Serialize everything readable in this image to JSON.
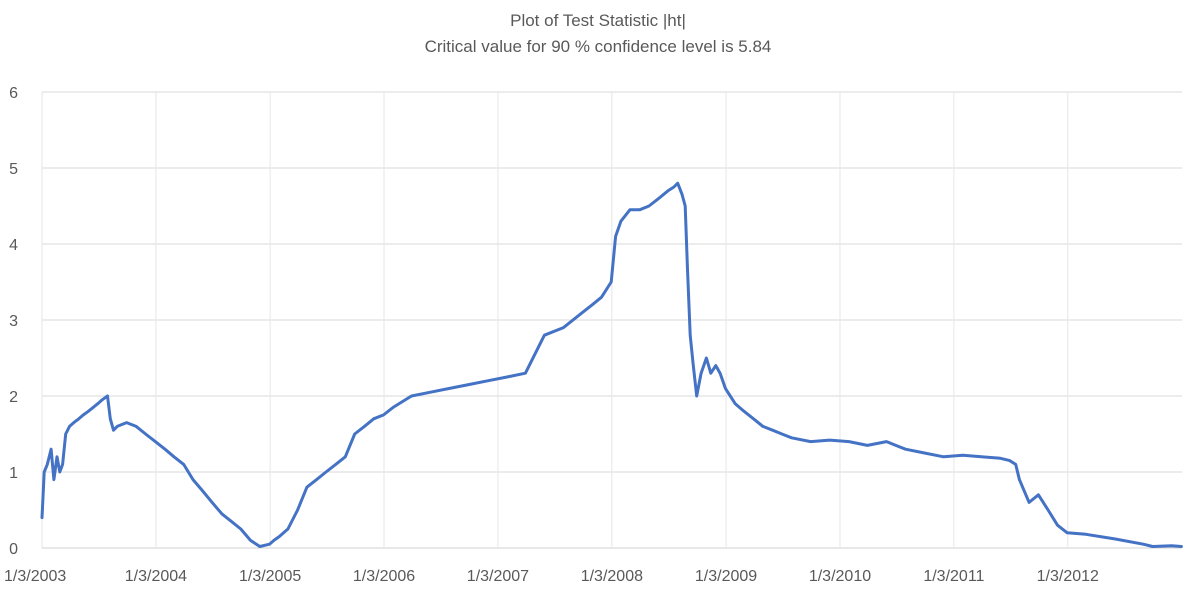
{
  "chart_data": {
    "type": "line",
    "title": "Plot of Test Statistic |ht|",
    "subtitle": "Critical value for 90 % confidence level is 5.84",
    "xlabel": "",
    "ylabel": "",
    "ylim": [
      0,
      6
    ],
    "yticks": [
      "0",
      "1",
      "2",
      "3",
      "4",
      "5",
      "6"
    ],
    "xticks": [
      "1/3/2003",
      "1/3/2004",
      "1/3/2005",
      "1/3/2006",
      "1/3/2007",
      "1/3/2008",
      "1/3/2009",
      "1/3/2010",
      "1/3/2011",
      "1/3/2012"
    ],
    "grid": true,
    "legend": "none",
    "line_color": "#4472C4",
    "series": [
      {
        "x": [
          "2003-01-03",
          "2003-01-10",
          "2003-01-20",
          "2003-02-01",
          "2003-02-10",
          "2003-02-20",
          "2003-03-01",
          "2003-03-10",
          "2003-03-20",
          "2003-04-01",
          "2003-04-15",
          "2003-05-01",
          "2003-05-15",
          "2003-06-01",
          "2003-07-01",
          "2003-07-15",
          "2003-08-01",
          "2003-08-10",
          "2003-08-20",
          "2003-09-01",
          "2003-10-01",
          "2003-11-01",
          "2003-12-01",
          "2004-01-01",
          "2004-02-01",
          "2004-03-01",
          "2004-04-01",
          "2004-05-01",
          "2004-06-01",
          "2004-07-01",
          "2004-08-01",
          "2004-09-01",
          "2004-10-01",
          "2004-11-01",
          "2004-12-01",
          "2005-01-01",
          "2005-01-15",
          "2005-02-01",
          "2005-03-01",
          "2005-04-01",
          "2005-05-01",
          "2005-06-01",
          "2005-07-01",
          "2005-08-01",
          "2005-09-01",
          "2005-10-01",
          "2005-11-01",
          "2005-12-01",
          "2006-01-01",
          "2006-02-01",
          "2006-04-01",
          "2006-06-01",
          "2006-08-01",
          "2006-10-01",
          "2006-12-01",
          "2007-02-01",
          "2007-04-01",
          "2007-06-01",
          "2007-08-01",
          "2007-10-01",
          "2007-11-01",
          "2007-12-01",
          "2008-01-01",
          "2008-01-15",
          "2008-02-01",
          "2008-03-01",
          "2008-04-01",
          "2008-05-01",
          "2008-06-01",
          "2008-07-01",
          "2008-07-20",
          "2008-08-01",
          "2008-08-15",
          "2008-08-25",
          "2008-09-01",
          "2008-09-10",
          "2008-09-20",
          "2008-10-01",
          "2008-10-15",
          "2008-11-01",
          "2008-11-15",
          "2008-12-01",
          "2008-12-15",
          "2009-01-01",
          "2009-02-01",
          "2009-03-01",
          "2009-04-01",
          "2009-05-01",
          "2009-06-01",
          "2009-07-01",
          "2009-08-01",
          "2009-10-01",
          "2009-12-01",
          "2010-02-01",
          "2010-04-01",
          "2010-06-01",
          "2010-07-01",
          "2010-08-01",
          "2010-10-01",
          "2010-12-01",
          "2011-02-01",
          "2011-04-01",
          "2011-06-01",
          "2011-07-01",
          "2011-07-20",
          "2011-08-01",
          "2011-09-01",
          "2011-10-01",
          "2011-11-01",
          "2011-12-01",
          "2012-01-01",
          "2012-03-01",
          "2012-06-01",
          "2012-09-01",
          "2012-10-01",
          "2012-12-01",
          "2013-01-01"
        ],
        "values": [
          0.4,
          1.0,
          1.1,
          1.3,
          0.9,
          1.2,
          1.0,
          1.1,
          1.5,
          1.6,
          1.65,
          1.7,
          1.75,
          1.8,
          1.9,
          1.95,
          2.0,
          1.7,
          1.55,
          1.6,
          1.65,
          1.6,
          1.5,
          1.4,
          1.3,
          1.2,
          1.1,
          0.9,
          0.75,
          0.6,
          0.45,
          0.35,
          0.25,
          0.1,
          0.02,
          0.05,
          0.1,
          0.15,
          0.25,
          0.5,
          0.8,
          0.9,
          1.0,
          1.1,
          1.2,
          1.5,
          1.6,
          1.7,
          1.75,
          1.85,
          2.0,
          2.05,
          2.1,
          2.15,
          2.2,
          2.25,
          2.3,
          2.8,
          2.9,
          3.1,
          3.2,
          3.3,
          3.5,
          4.1,
          4.3,
          4.45,
          4.45,
          4.5,
          4.6,
          4.7,
          4.75,
          4.8,
          4.65,
          4.5,
          3.7,
          2.8,
          2.4,
          2.0,
          2.3,
          2.5,
          2.3,
          2.4,
          2.3,
          2.1,
          1.9,
          1.8,
          1.7,
          1.6,
          1.55,
          1.5,
          1.45,
          1.4,
          1.42,
          1.4,
          1.35,
          1.4,
          1.35,
          1.3,
          1.25,
          1.2,
          1.22,
          1.2,
          1.18,
          1.15,
          1.1,
          0.9,
          0.6,
          0.7,
          0.5,
          0.3,
          0.2,
          0.18,
          0.12,
          0.05,
          0.02,
          0.03,
          0.02
        ]
      }
    ]
  }
}
